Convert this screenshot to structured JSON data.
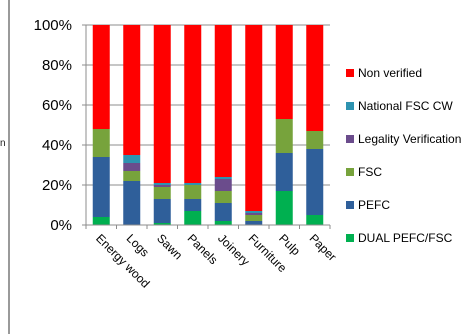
{
  "page": {
    "clipped_left_char": "n"
  },
  "chart_data": {
    "type": "bar",
    "stacked": true,
    "ylim": [
      0,
      100
    ],
    "yticks": [
      "0%",
      "20%",
      "40%",
      "60%",
      "80%",
      "100%"
    ],
    "ytick_values": [
      0,
      20,
      40,
      60,
      80,
      100
    ],
    "grid": true,
    "legend_position": "right",
    "categories": [
      "Energy wood",
      "Logs",
      "Sawn",
      "Panels",
      "Joinery",
      "Furniture",
      "Pulp",
      "Paper"
    ],
    "series": [
      {
        "name": "DUAL PEFC/FSC",
        "color": "#00b050",
        "values": [
          4,
          0,
          1,
          7,
          2,
          0,
          17,
          5
        ]
      },
      {
        "name": "PEFC",
        "color": "#2f5f9a",
        "values": [
          30,
          22,
          12,
          6,
          9,
          2,
          19,
          33
        ]
      },
      {
        "name": "FSC",
        "color": "#77a33c",
        "values": [
          14,
          5,
          6,
          7,
          6,
          3,
          17,
          9
        ]
      },
      {
        "name": "Legality Verification",
        "color": "#6b4c8c",
        "values": [
          0,
          4,
          1,
          0,
          6,
          1,
          0,
          0
        ]
      },
      {
        "name": "National FSC CW",
        "color": "#2e93b0",
        "values": [
          0,
          4,
          1,
          1,
          1,
          1,
          0,
          0
        ]
      },
      {
        "name": "Non verified",
        "color": "#ff0000",
        "values": [
          52,
          65,
          79,
          79,
          76,
          93,
          47,
          53
        ]
      }
    ]
  }
}
